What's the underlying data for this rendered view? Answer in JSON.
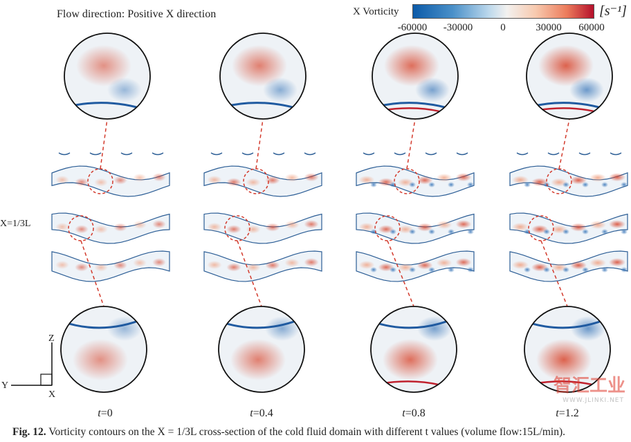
{
  "header": {
    "flow_direction": "Flow direction: Positive X direction"
  },
  "colorbar": {
    "label": "X Vorticity",
    "unit": "[s⁻¹]",
    "ticks": [
      "-60000",
      "-30000",
      "0",
      "30000",
      "60000"
    ],
    "colors": [
      "#0b5aa8",
      "#f3f1ef",
      "#b5102b"
    ]
  },
  "section_label": "X=1/3L",
  "axes": {
    "z": "Z",
    "y": "Y",
    "x": "X"
  },
  "columns": [
    {
      "t_label": "t",
      "t_value": "=0"
    },
    {
      "t_label": "t",
      "t_value": "=0.4"
    },
    {
      "t_label": "t",
      "t_value": "=0.8"
    },
    {
      "t_label": "t",
      "t_value": "=1.2"
    }
  ],
  "caption": {
    "fig_number": "Fig. 12.",
    "text": "Vorticity contours on the X = 1/3L cross-section of the cold fluid domain with different t values (volume flow:15L/min)."
  },
  "watermark": {
    "logo_text": "智汇工业",
    "url": "WWW.JLINKI.NET"
  }
}
